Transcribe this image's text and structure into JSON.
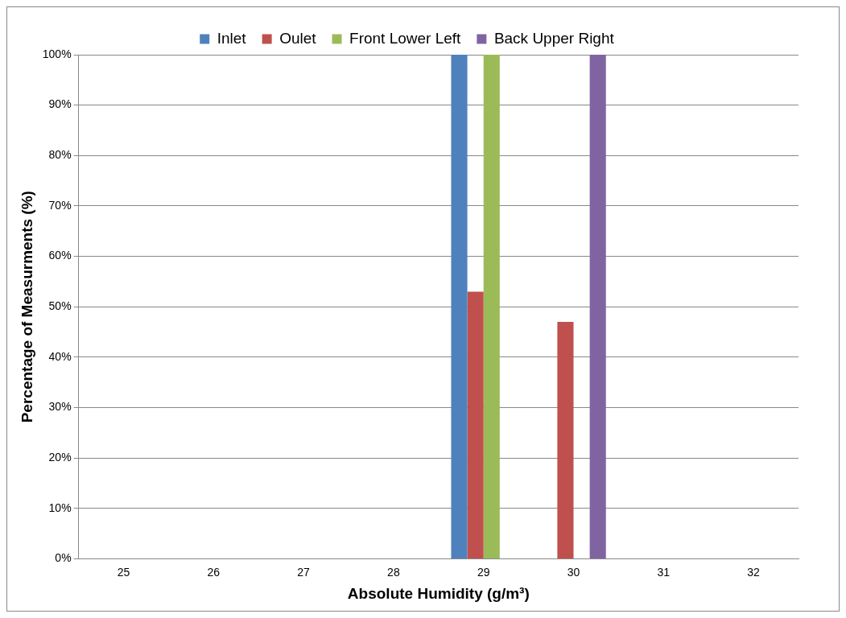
{
  "chart_data": {
    "type": "bar",
    "xlabel": "Absolute Humidity (g/m³)",
    "ylabel": "Percentage of Measurments (%)",
    "categories": [
      "25",
      "26",
      "27",
      "28",
      "29",
      "30",
      "31",
      "32"
    ],
    "series": [
      {
        "name": "Inlet",
        "color": "#4f81bd",
        "values": [
          0,
          0,
          0,
          0,
          100,
          0,
          0,
          0
        ]
      },
      {
        "name": "Oulet",
        "color": "#c0504d",
        "values": [
          0,
          0,
          0,
          0,
          53,
          47,
          0,
          0
        ]
      },
      {
        "name": "Front Lower Left",
        "color": "#9bbb59",
        "values": [
          0,
          0,
          0,
          0,
          100,
          0,
          0,
          0
        ]
      },
      {
        "name": "Back Upper Right",
        "color": "#8064a2",
        "values": [
          0,
          0,
          0,
          0,
          0,
          100,
          0,
          0
        ]
      }
    ],
    "ylim": [
      0,
      100
    ],
    "yticks": [
      {
        "value": 0,
        "label": "0%"
      },
      {
        "value": 10,
        "label": "10%"
      },
      {
        "value": 20,
        "label": "20%"
      },
      {
        "value": 30,
        "label": "30%"
      },
      {
        "value": 40,
        "label": "40%"
      },
      {
        "value": 50,
        "label": "50%"
      },
      {
        "value": 60,
        "label": "60%"
      },
      {
        "value": 70,
        "label": "70%"
      },
      {
        "value": 80,
        "label": "80%"
      },
      {
        "value": 90,
        "label": "90%"
      },
      {
        "value": 100,
        "label": "100%"
      }
    ],
    "grid": "y",
    "legend": "top"
  }
}
